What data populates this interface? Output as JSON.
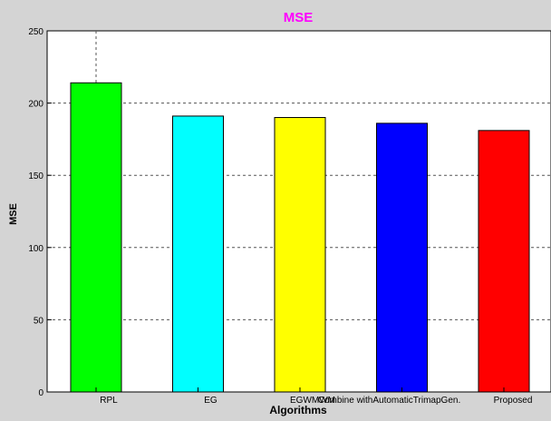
{
  "chart_data": {
    "type": "bar",
    "title": "MSE",
    "xlabel": "Algorithms",
    "ylabel": "MSE",
    "categories": [
      "RPL",
      "EG",
      "EGWMWM",
      "Combine withAutomaticTrimapGen.",
      "Proposed"
    ],
    "values": [
      214,
      191,
      190,
      186,
      181
    ],
    "colors": [
      "#00ff00",
      "#00ffff",
      "#ffff00",
      "#0000ff",
      "#ff0000"
    ],
    "ylim": [
      0,
      250
    ],
    "yticks": [
      0,
      50,
      100,
      150,
      200,
      250
    ],
    "grid": true,
    "legend": "none",
    "title_color": "#ff00ff",
    "background_color": "#d4d4d4"
  }
}
